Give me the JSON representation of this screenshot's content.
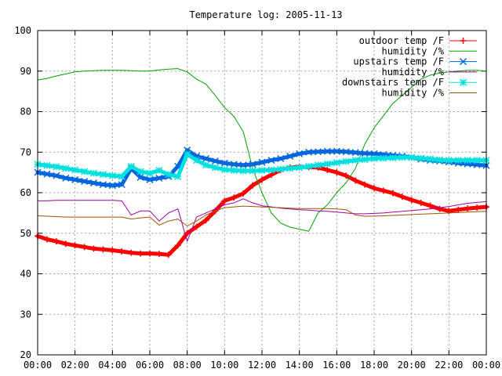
{
  "chart_data": {
    "type": "line",
    "title": "Temperature log: 2005-11-13",
    "xlabel": "",
    "ylabel": "",
    "ylim": [
      20,
      100
    ],
    "xlim": [
      "00:00",
      "24:00"
    ],
    "grid": true,
    "legend_position": "top-right",
    "x_ticks": [
      "00:00",
      "02:00",
      "04:00",
      "06:00",
      "08:00",
      "10:00",
      "12:00",
      "14:00",
      "16:00",
      "18:00",
      "20:00",
      "22:00",
      "00:00"
    ],
    "y_ticks": [
      20,
      30,
      40,
      50,
      60,
      70,
      80,
      90,
      100
    ],
    "x": [
      "00:00",
      "00:30",
      "01:00",
      "01:30",
      "02:00",
      "02:30",
      "03:00",
      "03:30",
      "04:00",
      "04:30",
      "05:00",
      "05:30",
      "06:00",
      "06:30",
      "07:00",
      "07:30",
      "08:00",
      "08:30",
      "09:00",
      "09:30",
      "10:00",
      "10:30",
      "11:00",
      "11:30",
      "12:00",
      "12:30",
      "13:00",
      "13:30",
      "14:00",
      "14:30",
      "15:00",
      "15:30",
      "16:00",
      "16:30",
      "17:00",
      "17:30",
      "18:00",
      "18:30",
      "19:00",
      "19:30",
      "20:00",
      "20:30",
      "21:00",
      "21:30",
      "22:00",
      "22:30",
      "23:00",
      "23:30",
      "24:00"
    ],
    "series": [
      {
        "name": "outdoor temp /F",
        "color": "#ff0000",
        "marker": "plus",
        "values": [
          49.3,
          48.5,
          48,
          47.4,
          47,
          46.6,
          46.2,
          46,
          45.8,
          45.5,
          45.2,
          45,
          45,
          44.9,
          44.7,
          47,
          50,
          51.6,
          53.2,
          55.5,
          58,
          58.8,
          59.8,
          61.8,
          63.2,
          64.4,
          65.6,
          66.2,
          66.4,
          66.3,
          66.2,
          65.6,
          65,
          64.2,
          63,
          62,
          61.1,
          60.5,
          59.9,
          59,
          58.2,
          57.5,
          56.8,
          56,
          55.5,
          55.8,
          56.1,
          56.3,
          56.5
        ]
      },
      {
        "name": "humidity /%",
        "color": "#00a000",
        "marker": "none",
        "values": [
          87.8,
          88.2,
          88.8,
          89.3,
          89.8,
          90,
          90.1,
          90.2,
          90.2,
          90.2,
          90.1,
          90,
          90,
          90.3,
          90.5,
          90.6,
          89.8,
          88,
          86.8,
          84,
          81,
          78.8,
          75,
          66,
          60,
          55,
          52.5,
          51.5,
          51,
          50.5,
          55,
          57,
          60,
          62.5,
          66,
          72,
          76,
          79,
          82,
          84,
          86,
          88,
          89,
          89.5,
          89.8,
          90,
          90.2,
          90.2,
          90
        ]
      },
      {
        "name": "upstairs temp /F",
        "color": "#0066dd",
        "marker": "x",
        "values": [
          65,
          64.6,
          64.2,
          63.6,
          63.2,
          62.8,
          62.4,
          62,
          61.8,
          62,
          66,
          63.8,
          63.2,
          63.6,
          64,
          66.5,
          70.5,
          69,
          68.4,
          67.8,
          67.3,
          67,
          66.8,
          67,
          67.5,
          68,
          68.4,
          69,
          69.6,
          70,
          70.1,
          70.2,
          70.2,
          70.1,
          69.9,
          69.7,
          69.6,
          69.4,
          69.2,
          69,
          68.7,
          68.3,
          68,
          67.8,
          67.6,
          67.3,
          67.1,
          66.9,
          66.7
        ]
      },
      {
        "name": "humidity /%",
        "color": "#a000a0",
        "marker": "none",
        "values": [
          58,
          58,
          58.1,
          58.1,
          58.1,
          58.1,
          58.1,
          58.1,
          58.1,
          58,
          54.5,
          55.5,
          55.5,
          53,
          55,
          56,
          48,
          54,
          55,
          56,
          57,
          57.5,
          58.5,
          57.5,
          56.8,
          56.5,
          56.2,
          56,
          55.8,
          55.7,
          55.5,
          55.4,
          55.2,
          55,
          54.8,
          54.8,
          54.9,
          55,
          55.2,
          55.4,
          55.6,
          55.8,
          56,
          56.3,
          56.6,
          57,
          57.4,
          57.6,
          57.8
        ]
      },
      {
        "name": "downstairs temp /F",
        "color": "#00e0e0",
        "marker": "star",
        "values": [
          67,
          66.7,
          66.4,
          66,
          65.6,
          65.2,
          64.8,
          64.5,
          64.2,
          64,
          66.5,
          65.2,
          64.8,
          65.5,
          64.5,
          64,
          69.5,
          68,
          66.8,
          66.2,
          65.7,
          65.5,
          65.4,
          65.4,
          65.5,
          65.6,
          65.8,
          66,
          66.2,
          66.5,
          66.8,
          67.1,
          67.4,
          67.7,
          68,
          68.2,
          68.4,
          68.5,
          68.6,
          68.7,
          68.7,
          68.5,
          68.3,
          68.1,
          68,
          68,
          68,
          68,
          68
        ]
      },
      {
        "name": "humidity /%",
        "color": "#a05000",
        "marker": "none",
        "values": [
          54.3,
          54.2,
          54.1,
          54,
          54,
          54,
          54,
          54,
          54,
          54,
          53.5,
          53.8,
          54,
          52,
          53,
          53.5,
          51.8,
          53,
          54.5,
          55.5,
          56.3,
          56.5,
          56.7,
          56.6,
          56.5,
          56.4,
          56.3,
          56.2,
          56.1,
          56.1,
          56.1,
          56.1,
          56,
          55.8,
          54.5,
          54.2,
          54.2,
          54.3,
          54.4,
          54.5,
          54.6,
          54.7,
          54.8,
          54.9,
          55,
          55.1,
          55.2,
          55.3,
          55.4
        ]
      }
    ]
  }
}
